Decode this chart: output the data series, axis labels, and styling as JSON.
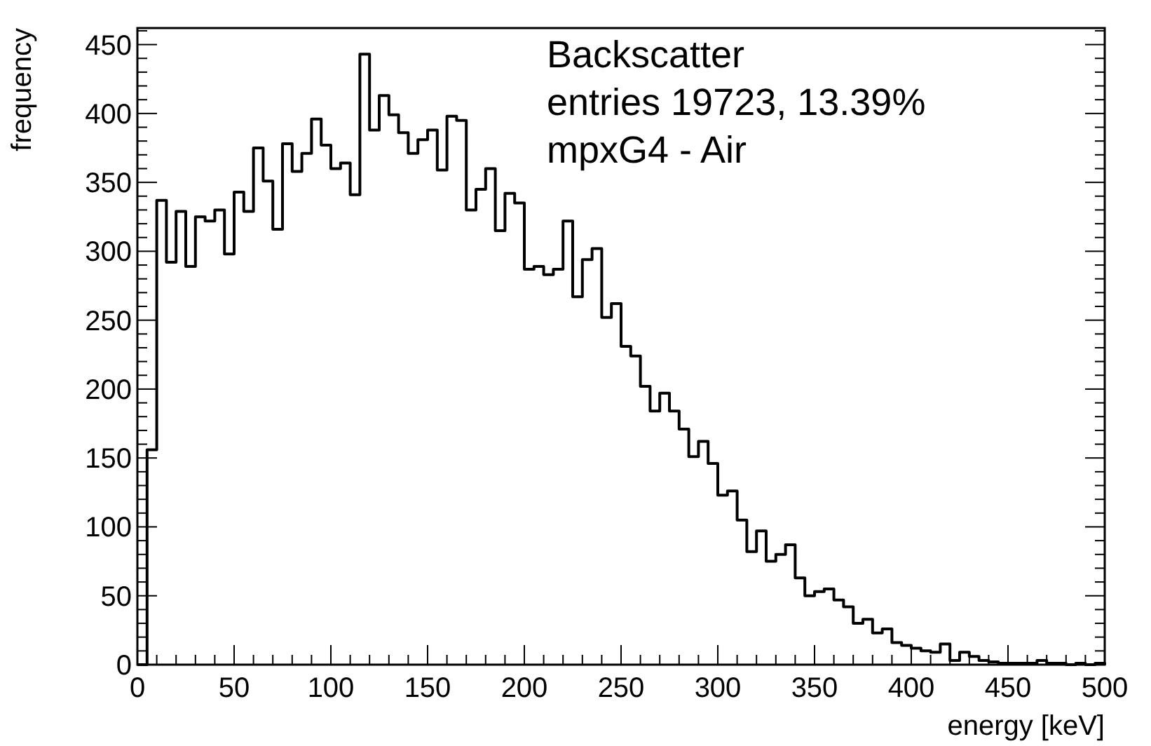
{
  "chart_data": {
    "type": "histogram",
    "xlabel": "energy [keV]",
    "ylabel": "frequency",
    "annotations": [
      "Backscatter",
      "entries 19723, 13.39%",
      "mpxG4 - Air"
    ],
    "bins": [
      0,
      5,
      10,
      15,
      20,
      25,
      30,
      35,
      40,
      45,
      50,
      55,
      60,
      65,
      70,
      75,
      80,
      85,
      90,
      95,
      100,
      105,
      110,
      115,
      120,
      125,
      130,
      135,
      140,
      145,
      150,
      155,
      160,
      165,
      170,
      175,
      180,
      185,
      190,
      195,
      200,
      205,
      210,
      215,
      220,
      225,
      230,
      235,
      240,
      245,
      250,
      255,
      260,
      265,
      270,
      275,
      280,
      285,
      290,
      295,
      300,
      305,
      310,
      315,
      320,
      325,
      330,
      335,
      340,
      345,
      350,
      355,
      360,
      365,
      370,
      375,
      380,
      385,
      390,
      395,
      400,
      405,
      410,
      415,
      420,
      425,
      430,
      435,
      440,
      445,
      450,
      455,
      460,
      465,
      470,
      475,
      480,
      485,
      490,
      495,
      500
    ],
    "values": [
      0,
      156,
      337,
      292,
      329,
      289,
      325,
      322,
      330,
      298,
      343,
      329,
      375,
      351,
      316,
      378,
      358,
      371,
      396,
      377,
      360,
      364,
      341,
      443,
      388,
      413,
      399,
      386,
      371,
      381,
      388,
      359,
      398,
      395,
      330,
      345,
      360,
      315,
      342,
      335,
      287,
      289,
      283,
      287,
      322,
      267,
      294,
      302,
      252,
      262,
      231,
      224,
      202,
      184,
      197,
      184,
      171,
      151,
      162,
      146,
      123,
      126,
      105,
      82,
      97,
      75,
      80,
      87,
      63,
      50,
      53,
      55,
      47,
      42,
      30,
      33,
      23,
      26,
      16,
      14,
      12,
      10,
      9,
      15,
      3,
      9,
      6,
      3,
      2,
      1,
      1,
      1,
      1,
      3,
      1,
      1,
      0,
      1,
      0,
      1
    ],
    "color": "#000000",
    "xlim": [
      0,
      500
    ],
    "xticks": [
      0,
      50,
      100,
      150,
      200,
      250,
      300,
      350,
      400,
      450,
      500
    ],
    "ylim": [
      0,
      462
    ],
    "yticks": [
      0,
      50,
      100,
      150,
      200,
      250,
      300,
      350,
      400,
      450
    ],
    "grid": false
  }
}
